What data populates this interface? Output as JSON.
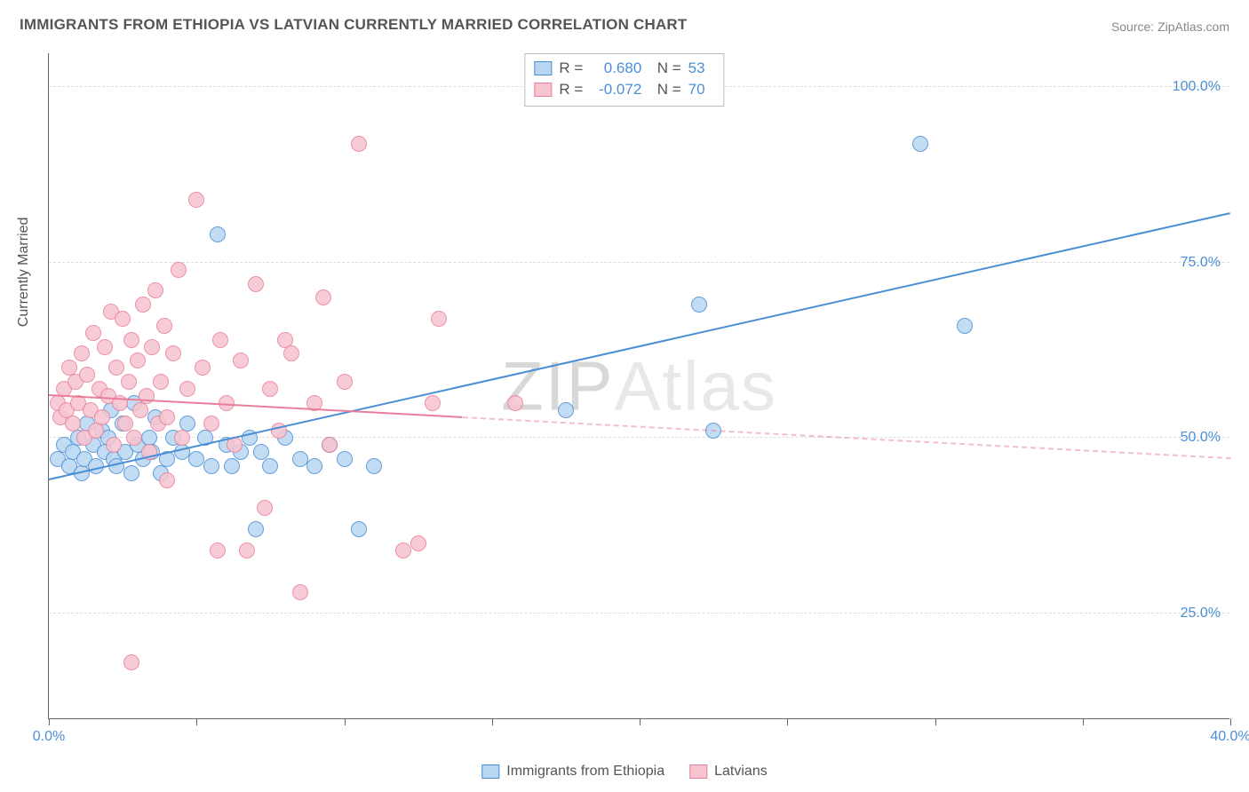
{
  "title": "IMMIGRANTS FROM ETHIOPIA VS LATVIAN CURRENTLY MARRIED CORRELATION CHART",
  "source": "Source: ZipAtlas.com",
  "watermark": {
    "zp": "ZIP",
    "at": "Atlas"
  },
  "chart": {
    "type": "scatter",
    "background_color": "#ffffff",
    "grid_color": "#dddddd",
    "axis_color": "#666666",
    "label_fontsize": 16,
    "title_fontsize": 17,
    "ylabel": "Currently Married",
    "xlim": [
      0,
      40
    ],
    "ylim": [
      10,
      105
    ],
    "xtick_positions": [
      0,
      5,
      10,
      15,
      20,
      25,
      30,
      35,
      40
    ],
    "xtick_labels": {
      "0": "0.0%",
      "40": "40.0%"
    },
    "ytick_positions": [
      25,
      50,
      75,
      100
    ],
    "ytick_labels": {
      "25": "25.0%",
      "50": "50.0%",
      "75": "75.0%",
      "100": "100.0%"
    },
    "point_radius": 9,
    "point_fill_opacity": 0.28,
    "point_stroke_opacity": 0.9,
    "line_width": 2.2,
    "series": [
      {
        "name": "Immigrants from Ethiopia",
        "color": "#4a8fd6",
        "fill": "#b8d6f2",
        "R": "0.680",
        "N": "53",
        "regression": {
          "x1": 0,
          "y1": 44,
          "x2": 40,
          "y2": 82,
          "solid_until_x": 40
        },
        "points": [
          [
            0.3,
            47
          ],
          [
            0.5,
            49
          ],
          [
            0.7,
            46
          ],
          [
            0.8,
            48
          ],
          [
            1.0,
            50
          ],
          [
            1.1,
            45
          ],
          [
            1.2,
            47
          ],
          [
            1.3,
            52
          ],
          [
            1.5,
            49
          ],
          [
            1.6,
            46
          ],
          [
            1.8,
            51
          ],
          [
            1.9,
            48
          ],
          [
            2.0,
            50
          ],
          [
            2.1,
            54
          ],
          [
            2.2,
            47
          ],
          [
            2.3,
            46
          ],
          [
            2.5,
            52
          ],
          [
            2.6,
            48
          ],
          [
            2.8,
            45
          ],
          [
            2.9,
            55
          ],
          [
            3.0,
            49
          ],
          [
            3.2,
            47
          ],
          [
            3.4,
            50
          ],
          [
            3.5,
            48
          ],
          [
            3.6,
            53
          ],
          [
            3.8,
            45
          ],
          [
            4.0,
            47
          ],
          [
            4.2,
            50
          ],
          [
            4.5,
            48
          ],
          [
            4.7,
            52
          ],
          [
            5.0,
            47
          ],
          [
            5.3,
            50
          ],
          [
            5.5,
            46
          ],
          [
            5.7,
            79
          ],
          [
            6.0,
            49
          ],
          [
            6.2,
            46
          ],
          [
            6.5,
            48
          ],
          [
            6.8,
            50
          ],
          [
            7.0,
            37
          ],
          [
            7.2,
            48
          ],
          [
            7.5,
            46
          ],
          [
            8.0,
            50
          ],
          [
            8.5,
            47
          ],
          [
            9.0,
            46
          ],
          [
            9.5,
            49
          ],
          [
            10.0,
            47
          ],
          [
            10.5,
            37
          ],
          [
            11.0,
            46
          ],
          [
            17.5,
            54
          ],
          [
            22.0,
            69
          ],
          [
            22.5,
            51
          ],
          [
            29.5,
            92
          ],
          [
            31.0,
            66
          ]
        ]
      },
      {
        "name": "Latvians",
        "color": "#e87f9a",
        "fill": "#f7c4d0",
        "R": "-0.072",
        "N": "70",
        "regression": {
          "x1": 0,
          "y1": 56,
          "x2": 40,
          "y2": 47,
          "solid_until_x": 14
        },
        "points": [
          [
            0.3,
            55
          ],
          [
            0.4,
            53
          ],
          [
            0.5,
            57
          ],
          [
            0.6,
            54
          ],
          [
            0.7,
            60
          ],
          [
            0.8,
            52
          ],
          [
            0.9,
            58
          ],
          [
            1.0,
            55
          ],
          [
            1.1,
            62
          ],
          [
            1.2,
            50
          ],
          [
            1.3,
            59
          ],
          [
            1.4,
            54
          ],
          [
            1.5,
            65
          ],
          [
            1.6,
            51
          ],
          [
            1.7,
            57
          ],
          [
            1.8,
            53
          ],
          [
            1.9,
            63
          ],
          [
            2.0,
            56
          ],
          [
            2.1,
            68
          ],
          [
            2.2,
            49
          ],
          [
            2.3,
            60
          ],
          [
            2.4,
            55
          ],
          [
            2.5,
            67
          ],
          [
            2.6,
            52
          ],
          [
            2.7,
            58
          ],
          [
            2.8,
            64
          ],
          [
            2.9,
            50
          ],
          [
            3.0,
            61
          ],
          [
            3.1,
            54
          ],
          [
            3.2,
            69
          ],
          [
            3.3,
            56
          ],
          [
            3.4,
            48
          ],
          [
            3.5,
            63
          ],
          [
            3.6,
            71
          ],
          [
            3.7,
            52
          ],
          [
            3.8,
            58
          ],
          [
            3.9,
            66
          ],
          [
            4.0,
            53
          ],
          [
            4.2,
            62
          ],
          [
            4.4,
            74
          ],
          [
            4.5,
            50
          ],
          [
            4.7,
            57
          ],
          [
            5.0,
            84
          ],
          [
            5.2,
            60
          ],
          [
            5.5,
            52
          ],
          [
            5.7,
            34
          ],
          [
            5.8,
            64
          ],
          [
            6.0,
            55
          ],
          [
            6.3,
            49
          ],
          [
            6.5,
            61
          ],
          [
            6.7,
            34
          ],
          [
            7.0,
            72
          ],
          [
            7.3,
            40
          ],
          [
            7.5,
            57
          ],
          [
            7.8,
            51
          ],
          [
            8.0,
            64
          ],
          [
            8.2,
            62
          ],
          [
            8.5,
            28
          ],
          [
            9.0,
            55
          ],
          [
            9.3,
            70
          ],
          [
            9.5,
            49
          ],
          [
            10.0,
            58
          ],
          [
            10.5,
            92
          ],
          [
            12.0,
            34
          ],
          [
            12.5,
            35
          ],
          [
            13.0,
            55
          ],
          [
            13.2,
            67
          ],
          [
            15.8,
            55
          ],
          [
            2.8,
            18
          ],
          [
            4.0,
            44
          ]
        ]
      }
    ]
  },
  "bottom_legend": [
    {
      "label": "Immigrants from Ethiopia",
      "color": "#4a8fd6",
      "fill": "#b8d6f2"
    },
    {
      "label": "Latvians",
      "color": "#e87f9a",
      "fill": "#f7c4d0"
    }
  ]
}
